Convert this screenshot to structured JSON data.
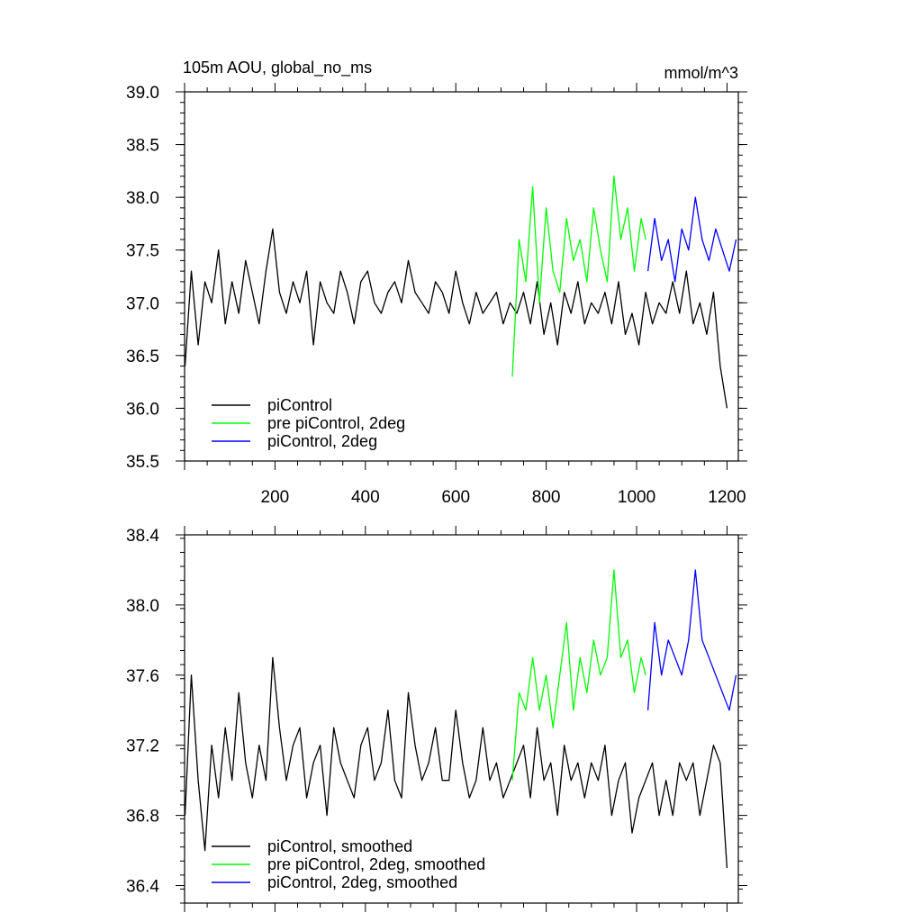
{
  "figure": {
    "title_left": "105m AOU, global_no_ms",
    "title_right": "mmol/m^3"
  },
  "chart_data": [
    {
      "type": "line",
      "panel": "top",
      "xlim": [
        0,
        1225
      ],
      "ylim": [
        35.5,
        39.0
      ],
      "x_ticks": [
        200,
        400,
        600,
        800,
        1000,
        1200
      ],
      "x_tick_labels": [
        "200",
        "400",
        "600",
        "800",
        "1000",
        "1200"
      ],
      "y_ticks": [
        35.5,
        36.0,
        36.5,
        37.0,
        37.5,
        38.0,
        38.5,
        39.0
      ],
      "y_tick_labels": [
        "35.5",
        "36.0",
        "36.5",
        "37.0",
        "37.5",
        "38.0",
        "38.5",
        "39.0"
      ],
      "legend": {
        "placement": "bottom-left"
      },
      "grid": false,
      "series": [
        {
          "name": "piControl",
          "color": "#000000",
          "x": [
            1,
            15,
            30,
            45,
            60,
            75,
            90,
            105,
            120,
            135,
            150,
            165,
            180,
            195,
            210,
            225,
            240,
            255,
            270,
            285,
            300,
            315,
            330,
            345,
            360,
            375,
            390,
            405,
            420,
            435,
            450,
            465,
            480,
            495,
            510,
            525,
            540,
            555,
            570,
            585,
            600,
            615,
            630,
            645,
            660,
            675,
            690,
            705,
            720,
            735,
            750,
            765,
            780,
            795,
            810,
            825,
            840,
            855,
            870,
            885,
            900,
            915,
            930,
            945,
            960,
            975,
            990,
            1005,
            1020,
            1035,
            1050,
            1065,
            1080,
            1095,
            1110,
            1125,
            1140,
            1155,
            1170,
            1185,
            1200
          ],
          "values": [
            36.4,
            37.3,
            36.6,
            37.2,
            37.0,
            37.5,
            36.8,
            37.2,
            36.9,
            37.4,
            37.1,
            36.8,
            37.3,
            37.7,
            37.1,
            36.9,
            37.2,
            37.0,
            37.3,
            36.6,
            37.2,
            37.0,
            36.9,
            37.3,
            37.1,
            36.8,
            37.2,
            37.3,
            37.0,
            36.9,
            37.1,
            37.2,
            37.0,
            37.4,
            37.1,
            37.0,
            36.9,
            37.2,
            37.1,
            36.9,
            37.3,
            37.0,
            36.8,
            37.1,
            36.9,
            37.0,
            37.1,
            36.8,
            37.0,
            36.9,
            37.1,
            36.8,
            37.2,
            36.7,
            37.0,
            36.6,
            37.1,
            36.9,
            37.2,
            36.8,
            37.0,
            36.9,
            37.1,
            36.8,
            37.2,
            36.7,
            36.9,
            36.6,
            37.1,
            36.8,
            37.0,
            36.9,
            37.2,
            36.9,
            37.3,
            36.8,
            37.0,
            36.7,
            37.1,
            36.4,
            36.0
          ]
        },
        {
          "name": "pre piControl, 2deg",
          "color": "#00ff00",
          "x": [
            725,
            740,
            755,
            770,
            785,
            800,
            815,
            830,
            845,
            860,
            875,
            890,
            905,
            920,
            935,
            950,
            965,
            980,
            995,
            1010,
            1020
          ],
          "values": [
            36.3,
            37.6,
            37.2,
            38.1,
            37.0,
            37.9,
            37.3,
            37.1,
            37.8,
            37.4,
            37.6,
            37.2,
            37.9,
            37.5,
            37.2,
            38.2,
            37.6,
            37.9,
            37.3,
            37.8,
            37.6
          ]
        },
        {
          "name": "piControl, 2deg",
          "color": "#0000ff",
          "x": [
            1025,
            1040,
            1055,
            1070,
            1085,
            1100,
            1115,
            1130,
            1145,
            1160,
            1175,
            1190,
            1205,
            1220
          ],
          "values": [
            37.3,
            37.8,
            37.4,
            37.6,
            37.2,
            37.7,
            37.5,
            38.0,
            37.6,
            37.4,
            37.7,
            37.5,
            37.3,
            37.6
          ]
        }
      ]
    },
    {
      "type": "line",
      "panel": "bottom",
      "xlim": [
        0,
        1225
      ],
      "ylim": [
        36.3,
        38.4
      ],
      "y_ticks": [
        36.4,
        36.8,
        37.2,
        37.6,
        38.0,
        38.4
      ],
      "y_tick_labels": [
        "36.4",
        "36.8",
        "37.2",
        "37.6",
        "38.0",
        "38.4"
      ],
      "legend": {
        "placement": "bottom-left"
      },
      "grid": false,
      "series": [
        {
          "name": "piControl, smoothed",
          "color": "#000000",
          "x": [
            1,
            15,
            30,
            45,
            60,
            75,
            90,
            105,
            120,
            135,
            150,
            165,
            180,
            195,
            210,
            225,
            240,
            255,
            270,
            285,
            300,
            315,
            330,
            345,
            360,
            375,
            390,
            405,
            420,
            435,
            450,
            465,
            480,
            495,
            510,
            525,
            540,
            555,
            570,
            585,
            600,
            615,
            630,
            645,
            660,
            675,
            690,
            705,
            720,
            735,
            750,
            765,
            780,
            795,
            810,
            825,
            840,
            855,
            870,
            885,
            900,
            915,
            930,
            945,
            960,
            975,
            990,
            1005,
            1020,
            1035,
            1050,
            1065,
            1080,
            1095,
            1110,
            1125,
            1140,
            1155,
            1170,
            1185,
            1200
          ],
          "values": [
            36.8,
            37.6,
            37.0,
            36.6,
            37.2,
            36.9,
            37.3,
            37.0,
            37.5,
            37.1,
            36.9,
            37.2,
            37.0,
            37.7,
            37.3,
            37.0,
            37.2,
            37.3,
            36.9,
            37.1,
            37.2,
            36.8,
            37.3,
            37.1,
            37.0,
            36.9,
            37.2,
            37.3,
            37.0,
            37.1,
            37.4,
            37.0,
            36.9,
            37.5,
            37.2,
            37.0,
            37.1,
            37.3,
            37.0,
            37.0,
            37.4,
            37.1,
            36.9,
            37.0,
            37.3,
            37.0,
            37.1,
            36.9,
            37.0,
            37.1,
            37.2,
            36.9,
            37.3,
            37.0,
            37.1,
            36.8,
            37.2,
            37.0,
            37.1,
            36.9,
            37.1,
            37.0,
            37.2,
            36.8,
            37.0,
            37.1,
            36.7,
            36.9,
            37.0,
            37.1,
            36.8,
            37.0,
            36.8,
            37.1,
            37.0,
            37.1,
            36.8,
            37.0,
            37.2,
            37.1,
            36.5
          ]
        },
        {
          "name": "pre piControl, 2deg, smoothed",
          "color": "#00ff00",
          "x": [
            725,
            740,
            755,
            770,
            785,
            800,
            815,
            830,
            845,
            860,
            875,
            890,
            905,
            920,
            935,
            950,
            965,
            980,
            995,
            1010,
            1020
          ],
          "values": [
            37.0,
            37.5,
            37.4,
            37.7,
            37.4,
            37.6,
            37.3,
            37.6,
            37.9,
            37.4,
            37.7,
            37.5,
            37.8,
            37.6,
            37.7,
            38.2,
            37.7,
            37.8,
            37.5,
            37.7,
            37.6
          ]
        },
        {
          "name": "piControl, 2deg, smoothed",
          "color": "#0000ff",
          "x": [
            1025,
            1040,
            1055,
            1070,
            1085,
            1100,
            1115,
            1130,
            1145,
            1160,
            1175,
            1190,
            1205,
            1220
          ],
          "values": [
            37.4,
            37.9,
            37.6,
            37.8,
            37.7,
            37.6,
            37.8,
            38.2,
            37.8,
            37.7,
            37.6,
            37.5,
            37.4,
            37.6
          ]
        }
      ]
    }
  ]
}
